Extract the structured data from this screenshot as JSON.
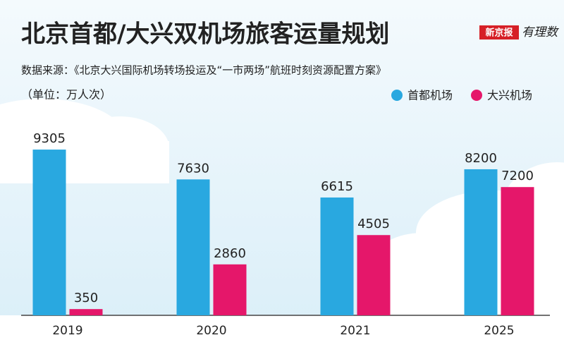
{
  "chart_data": {
    "type": "bar",
    "title": "北京首都/大兴双机场旅客运量规划",
    "subtitle": "数据来源：《北京大兴国际机场转场投运及“一市两场”航班时刻资源配置方案》",
    "unit": "（单位：万人次）",
    "brand": {
      "paper": "新京报",
      "column": "有理数"
    },
    "categories": [
      "2019",
      "2020",
      "2021",
      "2025"
    ],
    "series": [
      {
        "name": "首都机场",
        "color": "#29a8e0",
        "values": [
          9305,
          7630,
          6615,
          8200
        ]
      },
      {
        "name": "大兴机场",
        "color": "#e5176a",
        "values": [
          350,
          2860,
          4505,
          7200
        ]
      }
    ],
    "ylim": [
      0,
      12000
    ],
    "legend": "top-right"
  }
}
